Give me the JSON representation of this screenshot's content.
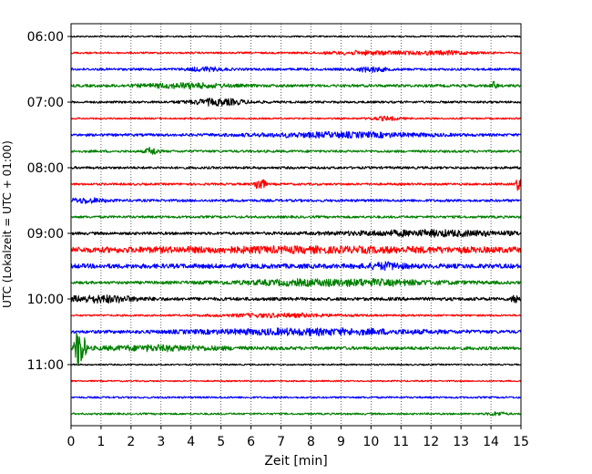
{
  "chart_data": {
    "type": "line",
    "title": "",
    "xlabel": "Zeit  [min]",
    "ylabel": "UTC (Lokalzeit = UTC + 01:00)",
    "xlim": [
      0,
      15
    ],
    "x_ticks": [
      0,
      1,
      2,
      3,
      4,
      5,
      6,
      7,
      8,
      9,
      10,
      11,
      12,
      13,
      14,
      15
    ],
    "y_ticks": [
      "06:00",
      "07:00",
      "08:00",
      "09:00",
      "10:00",
      "11:00"
    ],
    "grid": "vertical dotted",
    "colors": [
      "#000000",
      "#ff0000",
      "#0000ff",
      "#008000"
    ],
    "traces": [
      {
        "start": "06:00",
        "color": "#000000",
        "noise": 0.8,
        "events": []
      },
      {
        "start": "06:15",
        "color": "#ff0000",
        "noise": 1.0,
        "events": [
          {
            "t": 10.0,
            "amp": 2.0,
            "width": 1.5
          },
          {
            "t": 12.5,
            "amp": 1.8,
            "width": 1.0
          }
        ]
      },
      {
        "start": "06:30",
        "color": "#0000ff",
        "noise": 1.3,
        "events": [
          {
            "t": 4.5,
            "amp": 2.0,
            "width": 0.6
          },
          {
            "t": 10.0,
            "amp": 2.5,
            "width": 0.5
          }
        ]
      },
      {
        "start": "06:45",
        "color": "#008000",
        "noise": 1.5,
        "events": [
          {
            "t": 3.8,
            "amp": 2.5,
            "width": 1.4
          },
          {
            "t": 14.1,
            "amp": 4.0,
            "width": 0.1
          }
        ]
      },
      {
        "start": "07:00",
        "color": "#000000",
        "noise": 1.2,
        "events": [
          {
            "t": 4.9,
            "amp": 3.5,
            "width": 1.0
          }
        ]
      },
      {
        "start": "07:15",
        "color": "#ff0000",
        "noise": 0.9,
        "events": [
          {
            "t": 10.5,
            "amp": 2.0,
            "width": 0.5
          }
        ]
      },
      {
        "start": "07:30",
        "color": "#0000ff",
        "noise": 1.4,
        "events": [
          {
            "t": 9.0,
            "amp": 2.5,
            "width": 3.0
          }
        ]
      },
      {
        "start": "07:45",
        "color": "#008000",
        "noise": 1.3,
        "events": [
          {
            "t": 2.7,
            "amp": 4.5,
            "width": 0.2
          }
        ]
      },
      {
        "start": "08:00",
        "color": "#000000",
        "noise": 1.3,
        "events": []
      },
      {
        "start": "08:15",
        "color": "#ff0000",
        "noise": 1.2,
        "events": [
          {
            "t": 6.3,
            "amp": 9.0,
            "width": 0.15
          },
          {
            "t": 14.95,
            "amp": 8.0,
            "width": 0.12
          }
        ]
      },
      {
        "start": "08:30",
        "color": "#0000ff",
        "noise": 1.4,
        "events": [
          {
            "t": 0.5,
            "amp": 2.5,
            "width": 0.6
          }
        ]
      },
      {
        "start": "08:45",
        "color": "#008000",
        "noise": 1.3,
        "events": []
      },
      {
        "start": "09:00",
        "color": "#000000",
        "noise": 1.5,
        "events": [
          {
            "t": 12.0,
            "amp": 3.0,
            "width": 3.0
          }
        ]
      },
      {
        "start": "09:15",
        "color": "#ff0000",
        "noise": 2.5,
        "events": [
          {
            "t": 8.0,
            "amp": 2.0,
            "width": 7.0
          }
        ]
      },
      {
        "start": "09:30",
        "color": "#0000ff",
        "noise": 2.5,
        "events": [
          {
            "t": 10.5,
            "amp": 3.0,
            "width": 0.6
          }
        ]
      },
      {
        "start": "09:45",
        "color": "#008000",
        "noise": 1.5,
        "events": [
          {
            "t": 9.0,
            "amp": 3.5,
            "width": 3.5
          }
        ]
      },
      {
        "start": "10:00",
        "color": "#000000",
        "noise": 1.8,
        "events": [
          {
            "t": 1.0,
            "amp": 3.5,
            "width": 1.2
          },
          {
            "t": 14.8,
            "amp": 6.0,
            "width": 0.1
          }
        ]
      },
      {
        "start": "10:15",
        "color": "#ff0000",
        "noise": 1.0,
        "events": [
          {
            "t": 7.0,
            "amp": 2.0,
            "width": 2.0
          }
        ]
      },
      {
        "start": "10:30",
        "color": "#0000ff",
        "noise": 1.6,
        "events": [
          {
            "t": 8.0,
            "amp": 3.0,
            "width": 4.0
          }
        ]
      },
      {
        "start": "10:45",
        "color": "#008000",
        "noise": 1.8,
        "events": [
          {
            "t": 0.3,
            "amp": 28.0,
            "width": 0.15
          },
          {
            "t": 3.0,
            "amp": 2.5,
            "width": 2.0
          }
        ]
      },
      {
        "start": "11:00",
        "color": "#000000",
        "noise": 0.8,
        "events": []
      },
      {
        "start": "11:15",
        "color": "#ff0000",
        "noise": 0.8,
        "events": []
      },
      {
        "start": "11:30",
        "color": "#0000ff",
        "noise": 1.0,
        "events": []
      },
      {
        "start": "11:45",
        "color": "#008000",
        "noise": 1.0,
        "events": [
          {
            "t": 14.2,
            "amp": 2.0,
            "width": 0.3
          }
        ]
      }
    ]
  }
}
